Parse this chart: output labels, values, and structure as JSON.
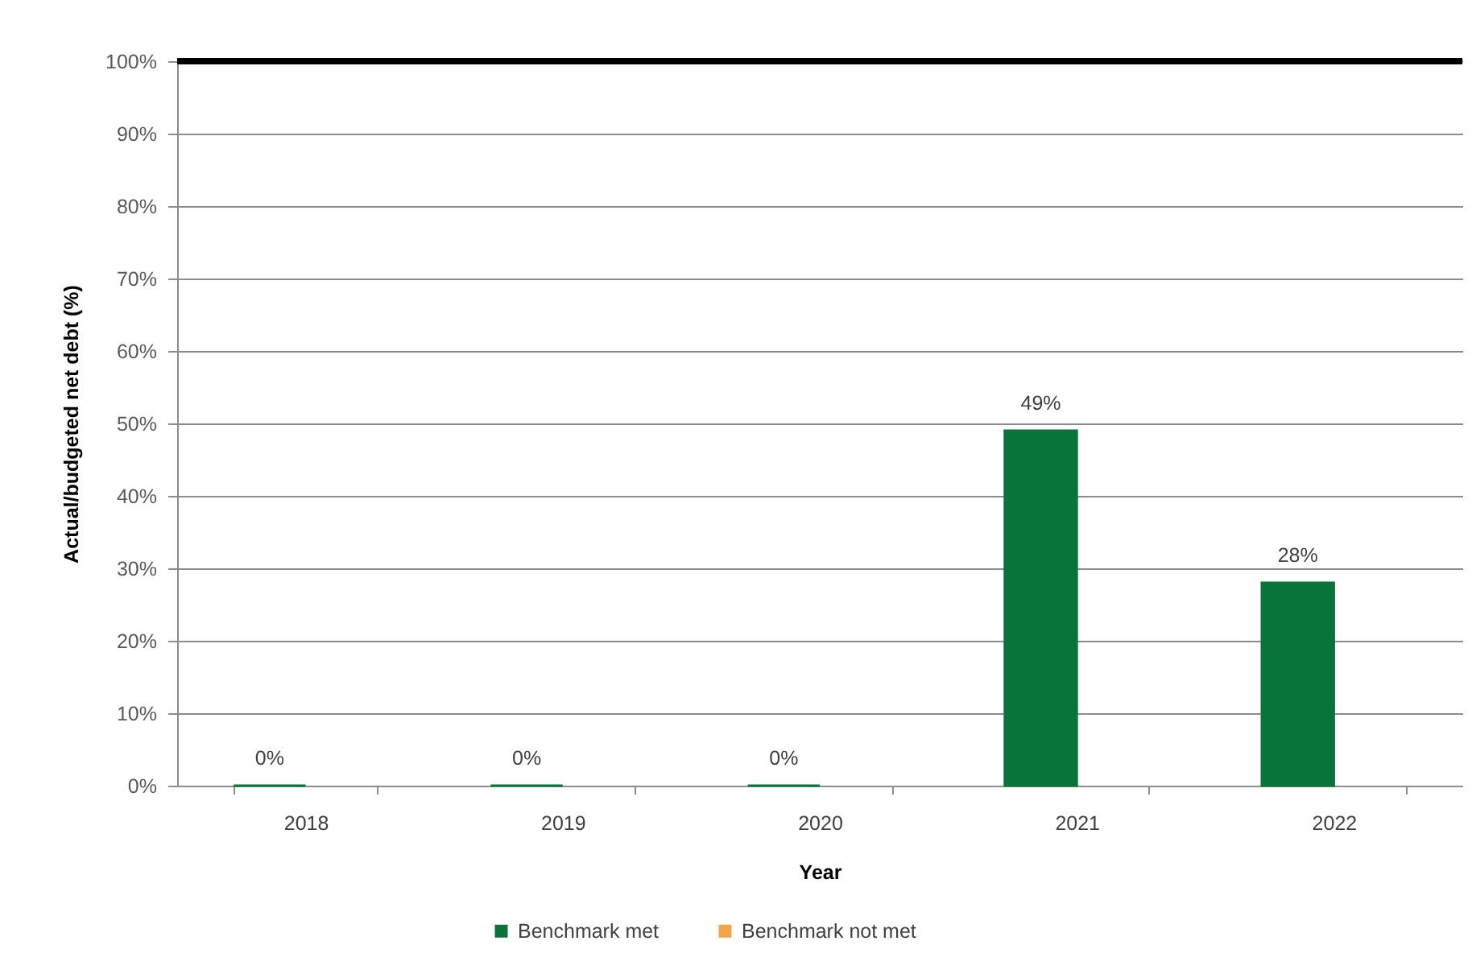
{
  "chart_data": {
    "type": "bar",
    "xlabel": "Year",
    "ylabel": "Actual/budgeted net debt (%)",
    "categories": [
      "2018",
      "2019",
      "2020",
      "2021",
      "2022"
    ],
    "series": [
      {
        "name": "Benchmark met",
        "color": "#08743a",
        "values": [
          0,
          0,
          0,
          49,
          28
        ],
        "value_labels": [
          "0%",
          "0%",
          "0%",
          "49%",
          "28%"
        ]
      },
      {
        "name": "Benchmark not met",
        "color": "#f4a54a",
        "values": [
          null,
          null,
          null,
          null,
          null
        ]
      }
    ],
    "ylim": [
      0,
      100
    ],
    "yticks": [
      {
        "value": 0,
        "label": "0%"
      },
      {
        "value": 10,
        "label": "10%"
      },
      {
        "value": 20,
        "label": "20%"
      },
      {
        "value": 30,
        "label": "30%"
      },
      {
        "value": 40,
        "label": "40%"
      },
      {
        "value": 50,
        "label": "50%"
      },
      {
        "value": 60,
        "label": "60%"
      },
      {
        "value": 70,
        "label": "70%"
      },
      {
        "value": 80,
        "label": "80%"
      },
      {
        "value": 90,
        "label": "90%"
      },
      {
        "value": 100,
        "label": "100%"
      }
    ],
    "ref_lines": [
      {
        "axis": "y",
        "value": 100,
        "color": "#000000"
      }
    ],
    "grid": "y",
    "legend": "bottom"
  }
}
